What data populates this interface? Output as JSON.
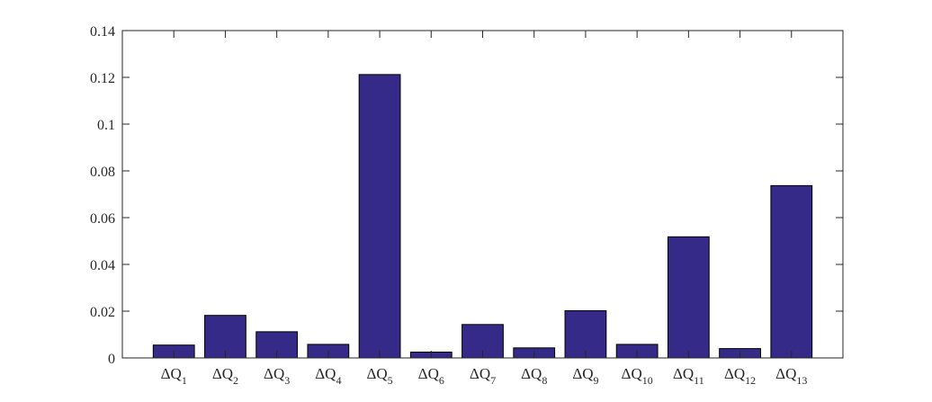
{
  "chart_data": {
    "type": "bar",
    "title": "",
    "xlabel": "",
    "ylabel": "",
    "categories": [
      {
        "base": "ΔQ",
        "sub": "1"
      },
      {
        "base": "ΔQ",
        "sub": "2"
      },
      {
        "base": "ΔQ",
        "sub": "3"
      },
      {
        "base": "ΔQ",
        "sub": "4"
      },
      {
        "base": "ΔQ",
        "sub": "5"
      },
      {
        "base": "ΔQ",
        "sub": "6"
      },
      {
        "base": "ΔQ",
        "sub": "7"
      },
      {
        "base": "ΔQ",
        "sub": "8"
      },
      {
        "base": "ΔQ",
        "sub": "9"
      },
      {
        "base": "ΔQ",
        "sub": "10"
      },
      {
        "base": "ΔQ",
        "sub": "11"
      },
      {
        "base": "ΔQ",
        "sub": "12"
      },
      {
        "base": "ΔQ",
        "sub": "13"
      }
    ],
    "values": [
      0.0055,
      0.0182,
      0.0112,
      0.0058,
      0.1212,
      0.0025,
      0.0143,
      0.0043,
      0.0202,
      0.0058,
      0.0518,
      0.004,
      0.0737
    ],
    "ylim": [
      0,
      0.14
    ],
    "yticks": [
      0,
      0.02,
      0.04,
      0.06,
      0.08,
      0.1,
      0.12,
      0.14
    ],
    "ytick_labels": [
      "0",
      "0.02",
      "0.04",
      "0.06",
      "0.08",
      "0.1",
      "0.12",
      "0.14"
    ],
    "bar_color": "#352a87",
    "grid": false,
    "legend": "none"
  }
}
